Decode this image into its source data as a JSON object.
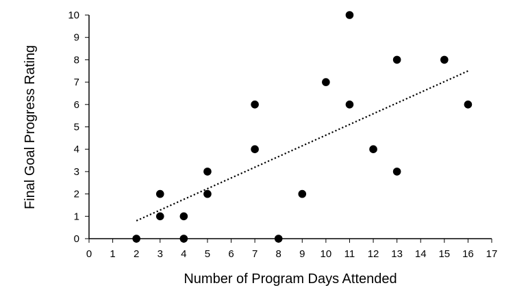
{
  "chart_data": {
    "type": "scatter",
    "xlabel": "Number of Program Days Attended",
    "ylabel": "Final Goal Progress Rating",
    "xlim": [
      0,
      17
    ],
    "ylim": [
      0,
      10
    ],
    "xticks": [
      "0",
      "1",
      "2",
      "3",
      "4",
      "5",
      "6",
      "7",
      "8",
      "9",
      "10",
      "11",
      "12",
      "13",
      "14",
      "15",
      "16",
      "17"
    ],
    "yticks": [
      "0",
      "1",
      "2",
      "3",
      "4",
      "5",
      "6",
      "7",
      "8",
      "9",
      "10"
    ],
    "grid": false,
    "legend": "none",
    "points": [
      {
        "x": 2,
        "y": 0
      },
      {
        "x": 3,
        "y": 2
      },
      {
        "x": 3,
        "y": 1
      },
      {
        "x": 4,
        "y": 1
      },
      {
        "x": 4,
        "y": 0
      },
      {
        "x": 5,
        "y": 3
      },
      {
        "x": 5,
        "y": 2
      },
      {
        "x": 7,
        "y": 6
      },
      {
        "x": 7,
        "y": 4
      },
      {
        "x": 8,
        "y": 0
      },
      {
        "x": 9,
        "y": 2
      },
      {
        "x": 10,
        "y": 7
      },
      {
        "x": 11,
        "y": 10
      },
      {
        "x": 11,
        "y": 6
      },
      {
        "x": 12,
        "y": 4
      },
      {
        "x": 13,
        "y": 8
      },
      {
        "x": 13,
        "y": 3
      },
      {
        "x": 15,
        "y": 8
      },
      {
        "x": 16,
        "y": 6
      }
    ],
    "trendline": {
      "style": "dotted",
      "type": "linear",
      "from": {
        "x": 2,
        "y": 0.8
      },
      "to": {
        "x": 16,
        "y": 7.5
      }
    },
    "marker_color": "#000000",
    "axis_color": "#000000"
  }
}
